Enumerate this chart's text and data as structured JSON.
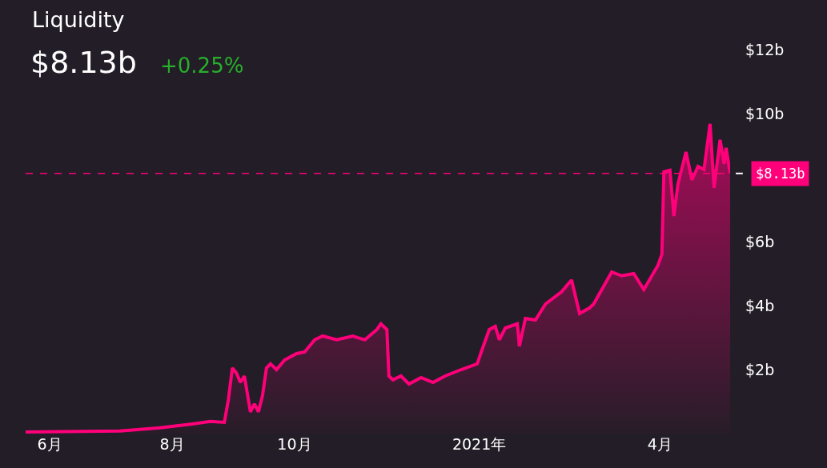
{
  "chart_data": {
    "type": "area",
    "title": "Liquidity",
    "subtitle": "$8.13b",
    "annotations": [
      "+0.25%"
    ],
    "x": [
      "2020-05-20",
      "2020-07-06",
      "2020-07-26",
      "2020-08-11",
      "2020-08-20",
      "2020-08-27",
      "2020-08-29",
      "2020-08-31",
      "2020-09-02",
      "2020-09-04",
      "2020-09-06",
      "2020-09-09",
      "2020-09-11",
      "2020-09-13",
      "2020-09-15",
      "2020-09-17",
      "2020-09-19",
      "2020-09-22",
      "2020-09-26",
      "2020-10-02",
      "2020-10-06",
      "2020-10-11",
      "2020-10-15",
      "2020-10-22",
      "2020-10-30",
      "2020-11-05",
      "2020-11-11",
      "2020-11-13",
      "2020-11-16",
      "2020-11-17",
      "2020-11-19",
      "2020-11-23",
      "2020-11-27",
      "2020-12-03",
      "2020-12-09",
      "2020-12-15",
      "2020-12-23",
      "2020-12-31",
      "2021-01-02",
      "2021-01-06",
      "2021-01-09",
      "2021-01-11",
      "2021-01-14",
      "2021-01-20",
      "2021-01-21",
      "2021-01-24",
      "2021-01-29",
      "2021-02-03",
      "2021-02-11",
      "2021-02-16",
      "2021-02-20",
      "2021-02-25",
      "2021-02-27",
      "2021-03-08",
      "2021-03-13",
      "2021-03-19",
      "2021-03-24",
      "2021-03-28",
      "2021-03-31",
      "2021-04-02",
      "2021-04-03",
      "2021-04-06",
      "2021-04-08",
      "2021-04-10",
      "2021-04-14",
      "2021-04-17",
      "2021-04-20",
      "2021-04-23",
      "2021-04-26",
      "2021-04-28",
      "2021-05-01",
      "2021-05-03",
      "2021-05-04",
      "2021-05-06"
    ],
    "series": [
      {
        "color": "#ff007a",
        "values": [
          0.05,
          0.08,
          0.18,
          0.3,
          0.38,
          0.35,
          1.05,
          2.05,
          1.9,
          1.6,
          1.8,
          0.68,
          0.93,
          0.68,
          1.18,
          2.05,
          2.18,
          2.0,
          2.3,
          2.5,
          2.55,
          2.93,
          3.05,
          2.93,
          3.05,
          2.93,
          3.25,
          3.43,
          3.25,
          1.8,
          1.68,
          1.8,
          1.55,
          1.75,
          1.6,
          1.8,
          2.0,
          2.18,
          2.55,
          3.25,
          3.35,
          2.93,
          3.3,
          3.43,
          2.73,
          3.6,
          3.55,
          4.05,
          4.43,
          4.8,
          3.75,
          3.93,
          4.05,
          5.05,
          4.93,
          5.0,
          4.5,
          4.93,
          5.25,
          5.6,
          8.18,
          8.23,
          6.8,
          7.8,
          8.8,
          7.93,
          8.35,
          8.25,
          9.68,
          7.68,
          9.18,
          8.43,
          8.93,
          8.13
        ]
      }
    ],
    "xlim": [
      "2020-05-20",
      "2021-05-06"
    ],
    "xticks": [
      {
        "value": "2020-06-01",
        "label": "6月"
      },
      {
        "value": "2020-08-01",
        "label": "8月"
      },
      {
        "value": "2020-10-01",
        "label": "10月"
      },
      {
        "value": "2021-01-01",
        "label": "2021年"
      },
      {
        "value": "2021-04-01",
        "label": "4月"
      }
    ],
    "ylim": [
      0,
      12
    ],
    "yticks": [
      {
        "value": 2,
        "label": "$2b"
      },
      {
        "value": 4,
        "label": "$4b"
      },
      {
        "value": 6,
        "label": "$6b"
      },
      {
        "value": 10,
        "label": "$10b"
      },
      {
        "value": 12,
        "label": "$12b"
      }
    ],
    "ref_lines": [
      {
        "axis": "y",
        "value": 8.13,
        "label": "$8.13b",
        "color": "#ff007a",
        "line_style": "dashed"
      }
    ],
    "grid": false
  }
}
